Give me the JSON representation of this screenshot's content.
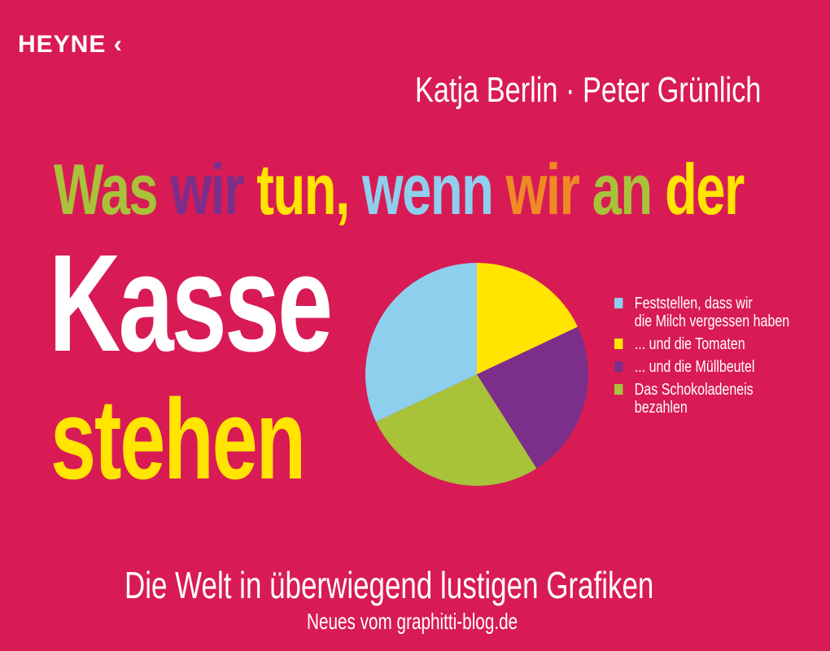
{
  "publisher": "HEYNE",
  "publisher_mark": "‹",
  "authors": "Katja Berlin · Peter Grünlich",
  "title_words": [
    {
      "text": "Was",
      "color": "#a8c23a"
    },
    {
      "text": "wir",
      "color": "#7b2f8a"
    },
    {
      "text": "tun,",
      "color": "#ffe500"
    },
    {
      "text": "wenn",
      "color": "#8ecfee"
    },
    {
      "text": "wir",
      "color": "#f08a24"
    },
    {
      "text": "an",
      "color": "#a8c23a"
    },
    {
      "text": "der",
      "color": "#ffe500"
    }
  ],
  "title_kasse": "Kasse",
  "title_stehen": "stehen",
  "subtitle": "Die Welt in überwiegend lustigen Grafiken",
  "blog_line": "Neues vom graphitti-blog.de",
  "background_color": "#d81b55",
  "chart_data": {
    "type": "pie",
    "start_angle": "12 o'clock, clockwise",
    "slices": [
      {
        "label": "... und die Tomaten",
        "value": 18,
        "color": "#ffe500"
      },
      {
        "label": "... und die Müllbeutel",
        "value": 23,
        "color": "#7b2f8a"
      },
      {
        "label": "Das Schokoladeneis bezahlen",
        "value": 27,
        "color": "#a8c23a"
      },
      {
        "label": "Feststellen, dass wir die Milch vergessen haben",
        "value": 32,
        "color": "#8ecfee"
      }
    ],
    "legend": {
      "placement": "right",
      "items": [
        {
          "lines": [
            "Feststellen, dass wir",
            "die Milch vergessen haben"
          ],
          "color": "#8ecfee"
        },
        {
          "lines": [
            "... und die Tomaten"
          ],
          "color": "#ffe500"
        },
        {
          "lines": [
            "... und die Müllbeutel"
          ],
          "color": "#7b2f8a"
        },
        {
          "lines": [
            "Das Schokoladeneis",
            "bezahlen"
          ],
          "color": "#a8c23a"
        }
      ]
    }
  }
}
